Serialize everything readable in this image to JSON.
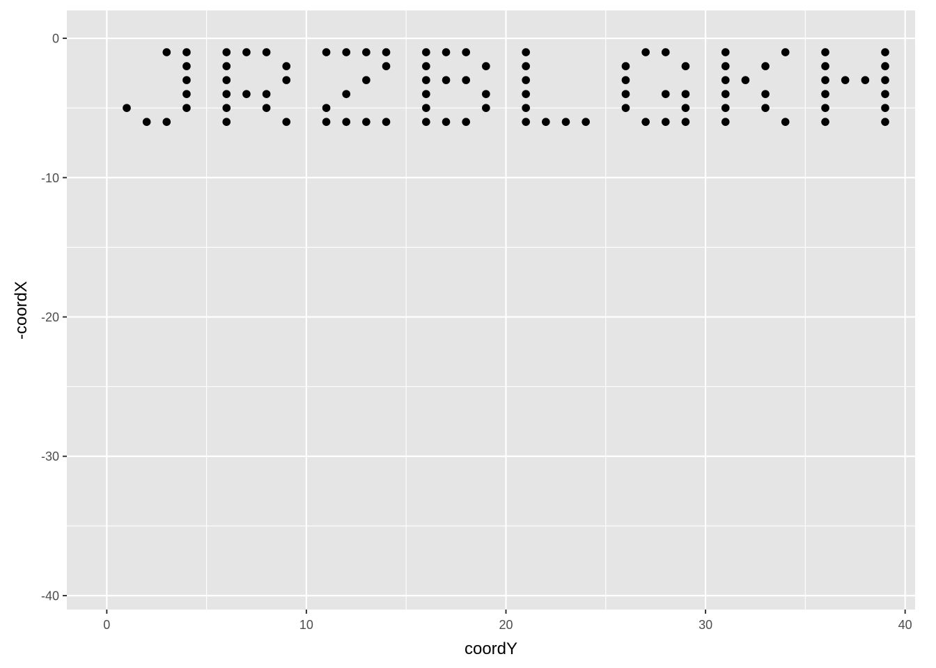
{
  "chart_data": {
    "type": "scatter",
    "xlabel": "coordY",
    "ylabel": "-coordX",
    "xlim": [
      -2,
      40.5
    ],
    "ylim": [
      -41,
      2
    ],
    "x_ticks": [
      0,
      10,
      20,
      30,
      40
    ],
    "y_ticks": [
      0,
      -10,
      -20,
      -30,
      -40
    ],
    "x_tick_labels": [
      "0",
      "10",
      "20",
      "30",
      "40"
    ],
    "y_tick_labels": [
      "0",
      "-10",
      "-20",
      "-30",
      "-40"
    ],
    "x_minor": [
      5,
      15,
      25,
      35
    ],
    "y_minor": [
      -5,
      -15,
      -25,
      -35
    ],
    "grid": true,
    "panel_color": "#e5e5e5",
    "grid_color": "#ffffff",
    "point_color": "#000000",
    "points": [
      {
        "x": 1,
        "y": -5
      },
      {
        "x": 2,
        "y": -6
      },
      {
        "x": 3,
        "y": -1
      },
      {
        "x": 3,
        "y": -6
      },
      {
        "x": 4,
        "y": -1
      },
      {
        "x": 4,
        "y": -2
      },
      {
        "x": 4,
        "y": -3
      },
      {
        "x": 4,
        "y": -4
      },
      {
        "x": 4,
        "y": -5
      },
      {
        "x": 6,
        "y": -1
      },
      {
        "x": 6,
        "y": -2
      },
      {
        "x": 6,
        "y": -3
      },
      {
        "x": 6,
        "y": -4
      },
      {
        "x": 6,
        "y": -5
      },
      {
        "x": 6,
        "y": -6
      },
      {
        "x": 7,
        "y": -1
      },
      {
        "x": 7,
        "y": -4
      },
      {
        "x": 8,
        "y": -1
      },
      {
        "x": 8,
        "y": -4
      },
      {
        "x": 8,
        "y": -5
      },
      {
        "x": 9,
        "y": -2
      },
      {
        "x": 9,
        "y": -3
      },
      {
        "x": 9,
        "y": -6
      },
      {
        "x": 11,
        "y": -1
      },
      {
        "x": 11,
        "y": -5
      },
      {
        "x": 11,
        "y": -6
      },
      {
        "x": 12,
        "y": -1
      },
      {
        "x": 12,
        "y": -4
      },
      {
        "x": 12,
        "y": -6
      },
      {
        "x": 13,
        "y": -1
      },
      {
        "x": 13,
        "y": -3
      },
      {
        "x": 13,
        "y": -6
      },
      {
        "x": 14,
        "y": -1
      },
      {
        "x": 14,
        "y": -2
      },
      {
        "x": 14,
        "y": -6
      },
      {
        "x": 16,
        "y": -1
      },
      {
        "x": 16,
        "y": -2
      },
      {
        "x": 16,
        "y": -3
      },
      {
        "x": 16,
        "y": -4
      },
      {
        "x": 16,
        "y": -5
      },
      {
        "x": 16,
        "y": -6
      },
      {
        "x": 17,
        "y": -1
      },
      {
        "x": 17,
        "y": -3
      },
      {
        "x": 17,
        "y": -6
      },
      {
        "x": 18,
        "y": -1
      },
      {
        "x": 18,
        "y": -3
      },
      {
        "x": 18,
        "y": -6
      },
      {
        "x": 19,
        "y": -2
      },
      {
        "x": 19,
        "y": -4
      },
      {
        "x": 19,
        "y": -5
      },
      {
        "x": 21,
        "y": -1
      },
      {
        "x": 21,
        "y": -2
      },
      {
        "x": 21,
        "y": -3
      },
      {
        "x": 21,
        "y": -4
      },
      {
        "x": 21,
        "y": -5
      },
      {
        "x": 21,
        "y": -6
      },
      {
        "x": 22,
        "y": -6
      },
      {
        "x": 23,
        "y": -6
      },
      {
        "x": 24,
        "y": -6
      },
      {
        "x": 26,
        "y": -2
      },
      {
        "x": 26,
        "y": -3
      },
      {
        "x": 26,
        "y": -4
      },
      {
        "x": 26,
        "y": -5
      },
      {
        "x": 27,
        "y": -1
      },
      {
        "x": 27,
        "y": -6
      },
      {
        "x": 28,
        "y": -1
      },
      {
        "x": 28,
        "y": -4
      },
      {
        "x": 28,
        "y": -6
      },
      {
        "x": 29,
        "y": -2
      },
      {
        "x": 29,
        "y": -4
      },
      {
        "x": 29,
        "y": -5
      },
      {
        "x": 29,
        "y": -6
      },
      {
        "x": 31,
        "y": -1
      },
      {
        "x": 31,
        "y": -2
      },
      {
        "x": 31,
        "y": -3
      },
      {
        "x": 31,
        "y": -4
      },
      {
        "x": 31,
        "y": -5
      },
      {
        "x": 31,
        "y": -6
      },
      {
        "x": 32,
        "y": -3
      },
      {
        "x": 33,
        "y": -2
      },
      {
        "x": 33,
        "y": -4
      },
      {
        "x": 33,
        "y": -5
      },
      {
        "x": 34,
        "y": -1
      },
      {
        "x": 34,
        "y": -6
      },
      {
        "x": 36,
        "y": -1
      },
      {
        "x": 36,
        "y": -2
      },
      {
        "x": 36,
        "y": -3
      },
      {
        "x": 36,
        "y": -4
      },
      {
        "x": 36,
        "y": -5
      },
      {
        "x": 36,
        "y": -6
      },
      {
        "x": 37,
        "y": -3
      },
      {
        "x": 38,
        "y": -3
      },
      {
        "x": 39,
        "y": -1
      },
      {
        "x": 39,
        "y": -2
      },
      {
        "x": 39,
        "y": -3
      },
      {
        "x": 39,
        "y": -4
      },
      {
        "x": 39,
        "y": -5
      },
      {
        "x": 39,
        "y": -6
      }
    ]
  }
}
